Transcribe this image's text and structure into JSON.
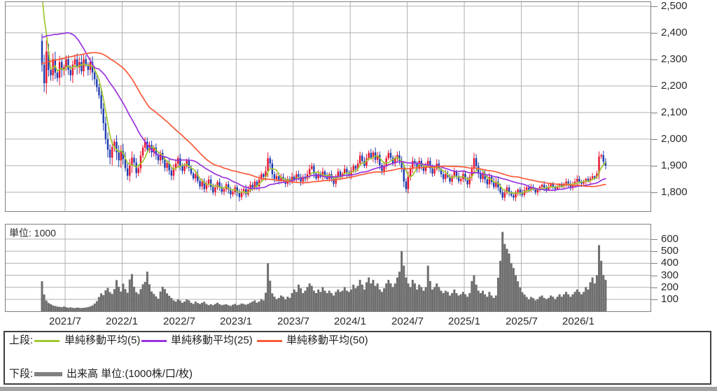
{
  "unit_label": "単位: 1000",
  "legend": {
    "upper_label": "上段:",
    "sma5_label": "単純移動平均(5)",
    "sma25_label": "単純移動平均(25)",
    "sma50_label": "単純移動平均(50)",
    "lower_label": "下段:",
    "volume_label": "出来高 単位:(1000株/口/枚)"
  },
  "colors": {
    "up_candle": "#e8142d",
    "down_candle": "#1e3cb0",
    "sma5": "#a0c832",
    "sma25": "#9933dd",
    "sma50": "#fa5a3a",
    "volume_bar": "#6e6e6e",
    "grid": "#b0b0b0",
    "border": "#7f7f7f",
    "legend_volume_swatch": "#808080"
  },
  "chart_data": {
    "type": "candlestick+volume",
    "timeframe": "weekly",
    "x_labels": [
      "2021/7",
      "2022/1",
      "2022/7",
      "2023/1",
      "2023/7",
      "2024/1",
      "2024/7",
      "2025/1",
      "2025/7",
      "2026/1"
    ],
    "price_axis": {
      "ticks": [
        "2,500",
        "2,400",
        "2,300",
        "2,200",
        "2,100",
        "2,000",
        "1,900",
        "1,800"
      ],
      "tick_values": [
        2500,
        2400,
        2300,
        2200,
        2100,
        2000,
        1900,
        1800
      ],
      "range": [
        1726,
        2518
      ]
    },
    "volume_axis": {
      "ticks": [
        "600",
        "500",
        "400",
        "300",
        "200",
        "100"
      ],
      "tick_values": [
        600,
        500,
        400,
        300,
        200,
        100
      ],
      "unit": 1000
    },
    "sma_periods": [
      5,
      25,
      50
    ],
    "first_open": 2370,
    "seed_closes": [
      2150,
      2153,
      2155,
      2158,
      2161,
      2163,
      2166,
      2169,
      2171,
      2174,
      2177,
      2179,
      2182,
      2185,
      2187,
      2190,
      2193,
      2195,
      2198,
      2201,
      2203,
      2206,
      2209,
      2211,
      2214,
      2217,
      2219,
      2222,
      2225,
      2227,
      2230,
      2233,
      2235,
      2238,
      2241,
      2243,
      2246,
      2250,
      2300,
      2380,
      2450,
      2510,
      2560,
      2600,
      2630,
      2650,
      2650,
      2630,
      2600,
      2560
    ],
    "closes": [
      2280,
      2210,
      2330,
      2260,
      2240,
      2300,
      2250,
      2230,
      2290,
      2260,
      2270,
      2300,
      2260,
      2240,
      2280,
      2300,
      2270,
      2290,
      2255,
      2300,
      2280,
      2260,
      2290,
      2250,
      2225,
      2195,
      2165,
      2115,
      2060,
      2000,
      1960,
      1930,
      1970,
      1990,
      1950,
      1920,
      1955,
      1925,
      1890,
      1862,
      1900,
      1930,
      1912,
      1872,
      1890,
      1938,
      1968,
      1990,
      1960,
      1978,
      1950,
      1968,
      1940,
      1920,
      1948,
      1922,
      1892,
      1910,
      1882,
      1862,
      1890,
      1908,
      1928,
      1900,
      1880,
      1898,
      1918,
      1892,
      1870,
      1852,
      1868,
      1842,
      1822,
      1840,
      1812,
      1830,
      1848,
      1820,
      1800,
      1818,
      1838,
      1820,
      1802,
      1812,
      1830,
      1810,
      1792,
      1802,
      1818,
      1800,
      1782,
      1800,
      1812,
      1792,
      1810,
      1828,
      1818,
      1840,
      1822,
      1848,
      1868,
      1858,
      1880,
      1928,
      1908,
      1868,
      1850,
      1860,
      1842,
      1858,
      1848,
      1832,
      1850,
      1840,
      1858,
      1848,
      1868,
      1858,
      1840,
      1858,
      1850,
      1868,
      1888,
      1898,
      1870,
      1852,
      1868,
      1858,
      1878,
      1860,
      1850,
      1868,
      1852,
      1832,
      1858,
      1878,
      1862,
      1870,
      1888,
      1870,
      1862,
      1880,
      1898,
      1888,
      1908,
      1938,
      1918,
      1900,
      1928,
      1948,
      1930,
      1950,
      1922,
      1940,
      1902,
      1880,
      1900,
      1928,
      1948,
      1930,
      1910,
      1928,
      1940,
      1918,
      1890,
      1840,
      1812,
      1858,
      1888,
      1918,
      1908,
      1888,
      1918,
      1898,
      1880,
      1900,
      1918,
      1890,
      1870,
      1888,
      1908,
      1888,
      1868,
      1850,
      1868,
      1858,
      1840,
      1860,
      1878,
      1860,
      1842,
      1850,
      1868,
      1850,
      1830,
      1858,
      1888,
      1928,
      1898,
      1870,
      1850,
      1868,
      1848,
      1830,
      1858,
      1838,
      1820,
      1840,
      1818,
      1800,
      1780,
      1798,
      1818,
      1800,
      1788,
      1780,
      1800,
      1810,
      1800,
      1790,
      1808,
      1818,
      1810,
      1820,
      1812,
      1800,
      1810,
      1820,
      1828,
      1818,
      1810,
      1820,
      1830,
      1820,
      1812,
      1822,
      1830,
      1822,
      1832,
      1840,
      1830,
      1820,
      1832,
      1840,
      1850,
      1840,
      1832,
      1840,
      1850,
      1842,
      1852,
      1860,
      1855,
      1870,
      1935,
      1940,
      1915,
      1900
    ],
    "volumes": [
      250,
      140,
      90,
      70,
      60,
      50,
      45,
      40,
      38,
      35,
      40,
      35,
      30,
      34,
      30,
      28,
      32,
      30,
      28,
      30,
      32,
      36,
      42,
      50,
      65,
      85,
      120,
      150,
      135,
      175,
      195,
      160,
      145,
      185,
      260,
      205,
      165,
      230,
      185,
      155,
      265,
      310,
      205,
      160,
      145,
      185,
      225,
      245,
      330,
      225,
      165,
      145,
      125,
      105,
      165,
      205,
      185,
      150,
      130,
      112,
      92,
      82,
      100,
      90,
      72,
      82,
      100,
      92,
      72,
      62,
      82,
      70,
      62,
      72,
      80,
      62,
      52,
      60,
      52,
      62,
      72,
      60,
      52,
      56,
      60,
      52,
      46,
      56,
      62,
      52,
      56,
      66,
      62,
      56,
      62,
      72,
      82,
      92,
      72,
      82,
      102,
      92,
      155,
      400,
      255,
      150,
      122,
      102,
      112,
      132,
      122,
      100,
      122,
      112,
      152,
      182,
      162,
      222,
      192,
      152,
      172,
      202,
      232,
      212,
      172,
      152,
      182,
      162,
      202,
      172,
      152,
      172,
      152,
      132,
      162,
      182,
      162,
      172,
      202,
      172,
      162,
      182,
      222,
      192,
      212,
      262,
      222,
      182,
      242,
      282,
      232,
      262,
      212,
      232,
      182,
      162,
      192,
      232,
      262,
      232,
      202,
      232,
      282,
      330,
      500,
      380,
      282,
      232,
      202,
      262,
      232,
      182,
      222,
      202,
      172,
      202,
      380,
      252,
      182,
      202,
      232,
      202,
      172,
      152,
      172,
      162,
      132,
      152,
      182,
      152,
      132,
      142,
      162,
      142,
      122,
      152,
      252,
      300,
      222,
      172,
      152,
      172,
      142,
      122,
      162,
      132,
      112,
      132,
      280,
      420,
      660,
      560,
      520,
      480,
      400,
      360,
      300,
      250,
      200,
      160,
      140,
      120,
      100,
      120,
      110,
      92,
      102,
      122,
      132,
      112,
      102,
      112,
      132,
      122,
      102,
      122,
      142,
      122,
      142,
      162,
      142,
      122,
      142,
      162,
      182,
      162,
      142,
      162,
      202,
      182,
      242,
      282,
      232,
      300,
      550,
      420,
      302,
      262
    ]
  }
}
